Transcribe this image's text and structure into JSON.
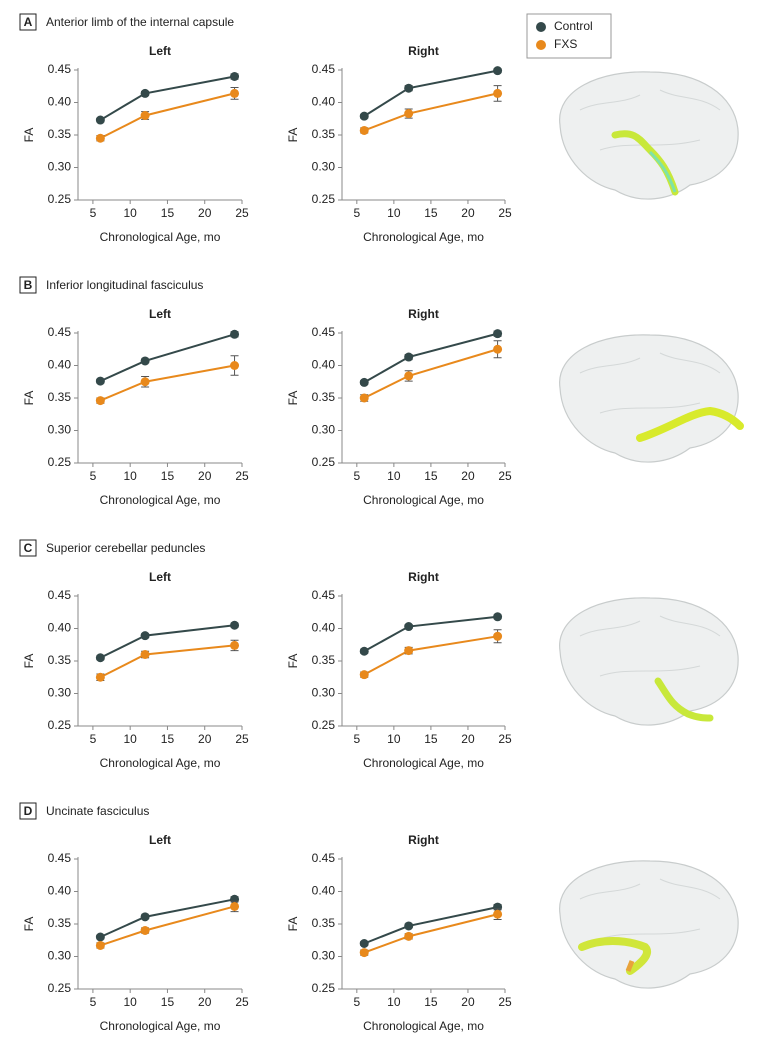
{
  "panels": [
    {
      "label": "A",
      "title": "Anterior limb of the internal capsule"
    },
    {
      "label": "B",
      "title": "Inferior longitudinal fasciculus"
    },
    {
      "label": "C",
      "title": "Superior cerebellar peduncles"
    },
    {
      "label": "D",
      "title": "Uncinate fasciculus"
    }
  ],
  "chart_data": [
    {
      "type": "line",
      "title": "Left",
      "xlabel": "Chronological Age, mo",
      "ylabel": "FA",
      "x": [
        6,
        12,
        24
      ],
      "xlim": [
        3,
        25
      ],
      "xticks": [
        5,
        10,
        15,
        20,
        25
      ],
      "ylim": [
        0.25,
        0.45
      ],
      "yticks": [
        0.25,
        {
          "value": 0.3,
          "label": "0.30"
        },
        0.35,
        {
          "value": 0.4,
          "label": "0.40"
        },
        0.45
      ],
      "series": [
        {
          "name": "Control",
          "color": "#34494a",
          "values": [
            0.373,
            0.414,
            0.44
          ],
          "errors": [
            0.003,
            0.003,
            0.004
          ]
        },
        {
          "name": "FXS",
          "color": "#e8891c",
          "values": [
            0.345,
            0.38,
            0.414
          ],
          "errors": [
            0.004,
            0.006,
            0.009
          ]
        }
      ]
    },
    {
      "type": "line",
      "title": "Right",
      "xlabel": "Chronological Age, mo",
      "ylabel": "FA",
      "x": [
        6,
        12,
        24
      ],
      "xlim": [
        3,
        25
      ],
      "xticks": [
        5,
        10,
        15,
        20,
        25
      ],
      "ylim": [
        0.25,
        0.45
      ],
      "yticks": [
        0.25,
        {
          "value": 0.3,
          "label": "0.30"
        },
        0.35,
        {
          "value": 0.4,
          "label": "0.40"
        },
        0.45
      ],
      "series": [
        {
          "name": "Control",
          "color": "#34494a",
          "values": [
            0.379,
            0.422,
            0.449
          ],
          "errors": [
            0.003,
            0.004,
            0.003
          ]
        },
        {
          "name": "FXS",
          "color": "#e8891c",
          "values": [
            0.357,
            0.383,
            0.414
          ],
          "errors": [
            0.004,
            0.007,
            0.012
          ]
        }
      ]
    },
    {
      "type": "line",
      "title": "Left",
      "xlabel": "Chronological Age, mo",
      "ylabel": "FA",
      "x": [
        6,
        12,
        24
      ],
      "xlim": [
        3,
        25
      ],
      "xticks": [
        5,
        10,
        15,
        20,
        25
      ],
      "ylim": [
        0.25,
        0.45
      ],
      "yticks": [
        0.25,
        {
          "value": 0.3,
          "label": "0.30"
        },
        0.35,
        {
          "value": 0.4,
          "label": "0.40"
        },
        0.45
      ],
      "series": [
        {
          "name": "Control",
          "color": "#34494a",
          "values": [
            0.376,
            0.407,
            0.448
          ],
          "errors": [
            0.003,
            0.003,
            0.004
          ]
        },
        {
          "name": "FXS",
          "color": "#e8891c",
          "values": [
            0.346,
            0.375,
            0.4
          ],
          "errors": [
            0.004,
            0.008,
            0.015
          ]
        }
      ]
    },
    {
      "type": "line",
      "title": "Right",
      "xlabel": "Chronological Age, mo",
      "ylabel": "FA",
      "x": [
        6,
        12,
        24
      ],
      "xlim": [
        3,
        25
      ],
      "xticks": [
        5,
        10,
        15,
        20,
        25
      ],
      "ylim": [
        0.25,
        0.45
      ],
      "yticks": [
        0.25,
        {
          "value": 0.3,
          "label": "0.30"
        },
        0.35,
        {
          "value": 0.4,
          "label": "0.40"
        },
        0.45
      ],
      "series": [
        {
          "name": "Control",
          "color": "#34494a",
          "values": [
            0.374,
            0.413,
            0.449
          ],
          "errors": [
            0.003,
            0.004,
            0.004
          ]
        },
        {
          "name": "FXS",
          "color": "#e8891c",
          "values": [
            0.35,
            0.384,
            0.425
          ],
          "errors": [
            0.005,
            0.008,
            0.013
          ]
        }
      ]
    },
    {
      "type": "line",
      "title": "Left",
      "xlabel": "Chronological Age, mo",
      "ylabel": "FA",
      "x": [
        6,
        12,
        24
      ],
      "xlim": [
        3,
        25
      ],
      "xticks": [
        5,
        10,
        15,
        20,
        25
      ],
      "ylim": [
        0.25,
        0.45
      ],
      "yticks": [
        0.25,
        {
          "value": 0.3,
          "label": "0.30"
        },
        0.35,
        {
          "value": 0.4,
          "label": "0.40"
        },
        0.45
      ],
      "series": [
        {
          "name": "Control",
          "color": "#34494a",
          "values": [
            0.355,
            0.389,
            0.405
          ],
          "errors": [
            0.003,
            0.003,
            0.003
          ]
        },
        {
          "name": "FXS",
          "color": "#e8891c",
          "values": [
            0.325,
            0.36,
            0.374
          ],
          "errors": [
            0.005,
            0.005,
            0.008
          ]
        }
      ]
    },
    {
      "type": "line",
      "title": "Right",
      "xlabel": "Chronological Age, mo",
      "ylabel": "FA",
      "x": [
        6,
        12,
        24
      ],
      "xlim": [
        3,
        25
      ],
      "xticks": [
        5,
        10,
        15,
        20,
        25
      ],
      "ylim": [
        0.25,
        0.45
      ],
      "yticks": [
        0.25,
        {
          "value": 0.3,
          "label": "0.30"
        },
        0.35,
        {
          "value": 0.4,
          "label": "0.40"
        },
        0.45
      ],
      "series": [
        {
          "name": "Control",
          "color": "#34494a",
          "values": [
            0.365,
            0.403,
            0.418
          ],
          "errors": [
            0.003,
            0.003,
            0.003
          ]
        },
        {
          "name": "FXS",
          "color": "#e8891c",
          "values": [
            0.329,
            0.366,
            0.388
          ],
          "errors": [
            0.004,
            0.005,
            0.01
          ]
        }
      ]
    },
    {
      "type": "line",
      "title": "Left",
      "xlabel": "Chronological Age, mo",
      "ylabel": "FA",
      "x": [
        6,
        12,
        24
      ],
      "xlim": [
        3,
        25
      ],
      "xticks": [
        5,
        10,
        15,
        20,
        25
      ],
      "ylim": [
        0.25,
        0.45
      ],
      "yticks": [
        0.25,
        {
          "value": 0.3,
          "label": "0.30"
        },
        0.35,
        {
          "value": 0.4,
          "label": "0.40"
        },
        0.45
      ],
      "series": [
        {
          "name": "Control",
          "color": "#34494a",
          "values": [
            0.33,
            0.361,
            0.388
          ],
          "errors": [
            0.003,
            0.003,
            0.004
          ]
        },
        {
          "name": "FXS",
          "color": "#e8891c",
          "values": [
            0.317,
            0.34,
            0.377
          ],
          "errors": [
            0.004,
            0.004,
            0.008
          ]
        }
      ]
    },
    {
      "type": "line",
      "title": "Right",
      "xlabel": "Chronological Age, mo",
      "ylabel": "FA",
      "x": [
        6,
        12,
        24
      ],
      "xlim": [
        3,
        25
      ],
      "xticks": [
        5,
        10,
        15,
        20,
        25
      ],
      "ylim": [
        0.25,
        0.45
      ],
      "yticks": [
        0.25,
        {
          "value": 0.3,
          "label": "0.30"
        },
        0.35,
        {
          "value": 0.4,
          "label": "0.40"
        },
        0.45
      ],
      "series": [
        {
          "name": "Control",
          "color": "#34494a",
          "values": [
            0.32,
            0.347,
            0.376
          ],
          "errors": [
            0.003,
            0.003,
            0.004
          ]
        },
        {
          "name": "FXS",
          "color": "#e8891c",
          "values": [
            0.306,
            0.331,
            0.365
          ],
          "errors": [
            0.004,
            0.004,
            0.008
          ]
        }
      ]
    }
  ]
}
